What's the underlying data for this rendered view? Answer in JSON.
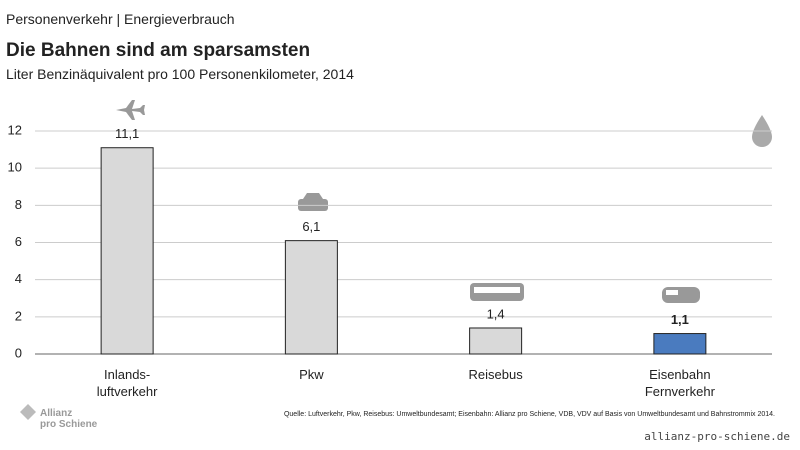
{
  "header": "Personenverkehr | Energieverbrauch",
  "chart_data": {
    "type": "bar",
    "title": "Die Bahnen sind am sparsamsten",
    "subtitle": "Liter Benzinäquivalent pro 100 Personenkilometer, 2014",
    "categories": [
      "Inlands-\nluftverkehr",
      "Pkw",
      "Reisebus",
      "Eisenbahn\nFernverkehr"
    ],
    "values": [
      11.1,
      6.1,
      1.4,
      1.1
    ],
    "value_labels": [
      "11,1",
      "6,1",
      "1,4",
      "1,1"
    ],
    "colors": [
      "#d9d9d9",
      "#d9d9d9",
      "#d9d9d9",
      "#4a7bbf"
    ],
    "ylim": [
      0,
      12
    ],
    "yticks": [
      0,
      2,
      4,
      6,
      8,
      10,
      12
    ],
    "grid": true
  },
  "source": "Quelle: Luftverkehr, Pkw, Reisebus: Umweltbundesamt; Eisenbahn: Allianz pro Schiene, VDB, VDV  auf Basis von Umweltbundesamt und Bahnstrommix 2014.",
  "logo": "Allianz\npro Schiene",
  "watermark": "allianz-pro-schiene.de"
}
